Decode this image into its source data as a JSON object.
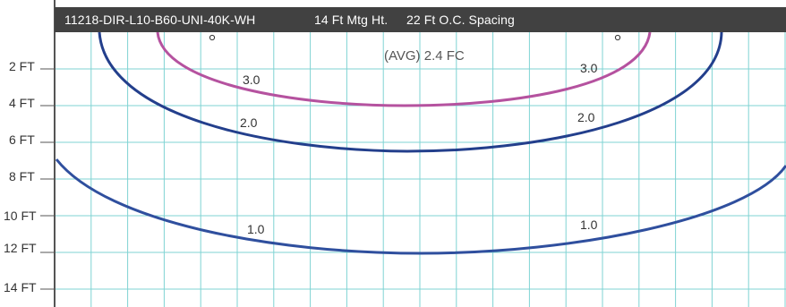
{
  "header": {
    "model": "11218-DIR-L10-B60-UNI-40K-WH",
    "mounting_height": "14 Ft Mtg Ht.",
    "spacing": "22 Ft O.C. Spacing"
  },
  "average_label": "(AVG) 2.4 FC",
  "y_axis": {
    "labels": [
      "2 FT",
      "4 FT",
      "6 FT",
      "8 FT",
      "10 FT",
      "12 FT",
      "14 FT"
    ]
  },
  "contours": [
    {
      "value": "3.0",
      "color": "#b5529f",
      "labels": [
        "3.0",
        "3.0"
      ]
    },
    {
      "value": "2.0",
      "color": "#233f8c",
      "labels": [
        "2.0",
        "2.0"
      ]
    },
    {
      "value": "1.0",
      "color": "#2f4f9e",
      "labels": [
        "1.0",
        "1.0"
      ]
    }
  ],
  "colors": {
    "grid": "#7fd3d3",
    "header_bg": "#414141",
    "axis": "#555555"
  }
}
